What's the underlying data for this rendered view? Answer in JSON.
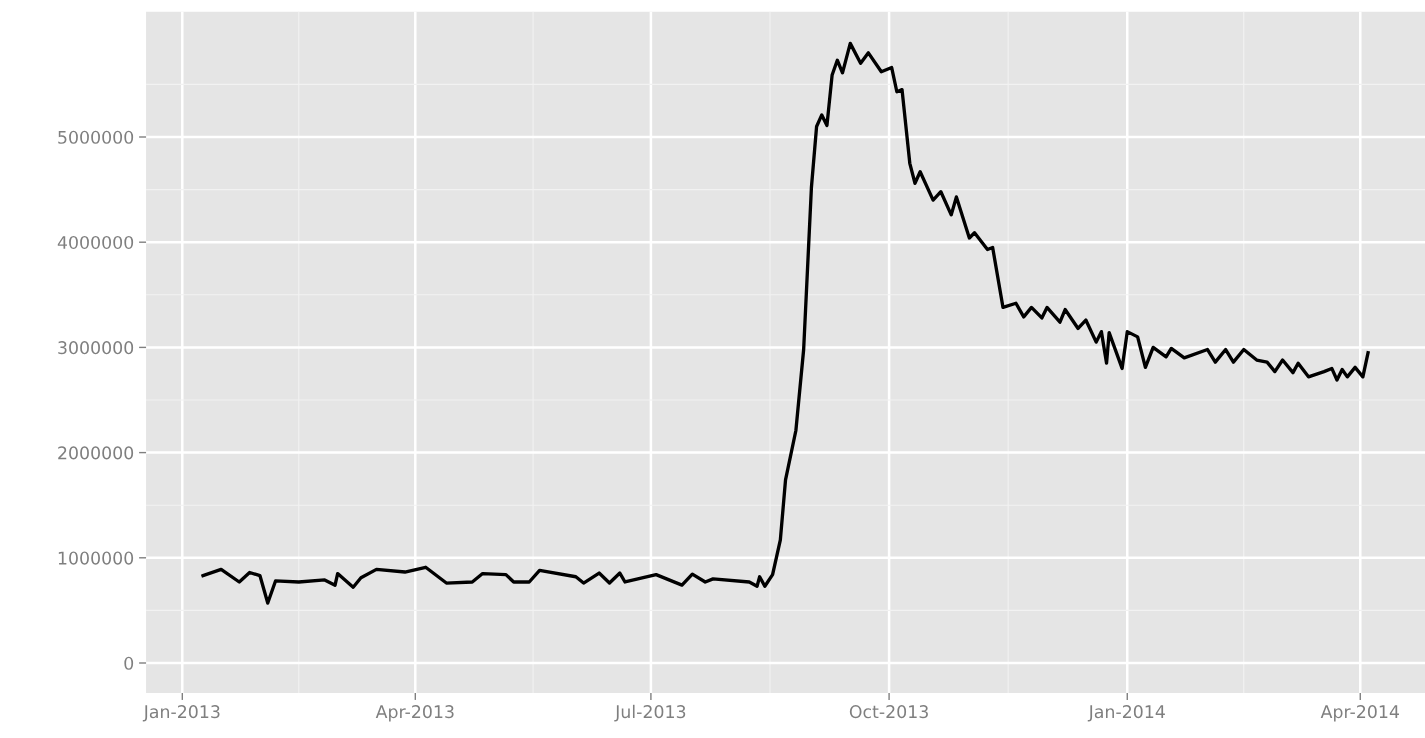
{
  "chart_data": {
    "type": "line",
    "grid": true,
    "marker": "none",
    "line_style": "solid",
    "xlim": [
      "2012-12-18",
      "2014-04-26"
    ],
    "xticks": [
      {
        "value": "2013-01-01",
        "label": "Jan-2013"
      },
      {
        "value": "2013-04-01",
        "label": "Apr-2013"
      },
      {
        "value": "2013-07-01",
        "label": "Jul-2013"
      },
      {
        "value": "2013-10-01",
        "label": "Oct-2013"
      },
      {
        "value": "2014-01-01",
        "label": "Jan-2014"
      },
      {
        "value": "2014-04-01",
        "label": "Apr-2014"
      }
    ],
    "ylim": [
      -285000,
      6190000
    ],
    "yticks": [
      0,
      1000000,
      2000000,
      3000000,
      4000000,
      5000000
    ],
    "series": [
      {
        "color": "#000000",
        "x": [
          "2013-01-09",
          "2013-01-16",
          "2013-01-23",
          "2013-01-27",
          "2013-01-31",
          "2013-02-03",
          "2013-02-06",
          "2013-02-15",
          "2013-02-25",
          "2013-03-01",
          "2013-03-02",
          "2013-03-08",
          "2013-03-11",
          "2013-03-17",
          "2013-03-28",
          "2013-04-05",
          "2013-04-13",
          "2013-04-23",
          "2013-04-27",
          "2013-05-06",
          "2013-05-09",
          "2013-05-15",
          "2013-05-19",
          "2013-06-02",
          "2013-06-05",
          "2013-06-11",
          "2013-06-15",
          "2013-06-19",
          "2013-06-21",
          "2013-07-03",
          "2013-07-13",
          "2013-07-17",
          "2013-07-22",
          "2013-07-25",
          "2013-08-08",
          "2013-08-11",
          "2013-08-12",
          "2013-08-14",
          "2013-08-17",
          "2013-08-20",
          "2013-08-22",
          "2013-08-26",
          "2013-08-29",
          "2013-09-01",
          "2013-09-03",
          "2013-09-05",
          "2013-09-07",
          "2013-09-09",
          "2013-09-11",
          "2013-09-13",
          "2013-09-16",
          "2013-09-20",
          "2013-09-23",
          "2013-09-28",
          "2013-10-02",
          "2013-10-04",
          "2013-10-06",
          "2013-10-09",
          "2013-10-11",
          "2013-10-13",
          "2013-10-18",
          "2013-10-21",
          "2013-10-25",
          "2013-10-27",
          "2013-11-01",
          "2013-11-03",
          "2013-11-08",
          "2013-11-10",
          "2013-11-14",
          "2013-11-19",
          "2013-11-22",
          "2013-11-25",
          "2013-11-29",
          "2013-12-01",
          "2013-12-06",
          "2013-12-08",
          "2013-12-13",
          "2013-12-16",
          "2013-12-20",
          "2013-12-22",
          "2013-12-24",
          "2013-12-25",
          "2013-12-30",
          "2014-01-01",
          "2014-01-05",
          "2014-01-08",
          "2014-01-11",
          "2014-01-16",
          "2014-01-18",
          "2014-01-23",
          "2014-02-01",
          "2014-02-04",
          "2014-02-08",
          "2014-02-11",
          "2014-02-15",
          "2014-02-20",
          "2014-02-24",
          "2014-02-27",
          "2014-03-02",
          "2014-03-06",
          "2014-03-08",
          "2014-03-12",
          "2014-03-18",
          "2014-03-21",
          "2014-03-23",
          "2014-03-25",
          "2014-03-27",
          "2014-03-30",
          "2014-04-02",
          "2014-04-04"
        ],
        "values": [
          830000,
          890000,
          770000,
          860000,
          830000,
          570000,
          780000,
          770000,
          790000,
          740000,
          850000,
          720000,
          810000,
          890000,
          865000,
          910000,
          760000,
          770000,
          850000,
          840000,
          770000,
          770000,
          880000,
          820000,
          760000,
          855000,
          760000,
          855000,
          770000,
          840000,
          740000,
          845000,
          770000,
          800000,
          770000,
          730000,
          820000,
          730000,
          840000,
          1170000,
          1740000,
          2210000,
          2980000,
          4520000,
          5100000,
          5210000,
          5110000,
          5590000,
          5730000,
          5610000,
          5890000,
          5700000,
          5800000,
          5620000,
          5660000,
          5430000,
          5450000,
          4750000,
          4560000,
          4670000,
          4400000,
          4480000,
          4260000,
          4430000,
          4040000,
          4090000,
          3930000,
          3950000,
          3380000,
          3420000,
          3290000,
          3380000,
          3280000,
          3380000,
          3240000,
          3360000,
          3180000,
          3260000,
          3050000,
          3150000,
          2850000,
          3140000,
          2800000,
          3150000,
          3100000,
          2810000,
          3000000,
          2910000,
          2990000,
          2900000,
          2980000,
          2860000,
          2980000,
          2860000,
          2980000,
          2880000,
          2860000,
          2770000,
          2880000,
          2760000,
          2850000,
          2720000,
          2770000,
          2800000,
          2690000,
          2790000,
          2720000,
          2810000,
          2720000,
          2950000
        ]
      }
    ]
  }
}
